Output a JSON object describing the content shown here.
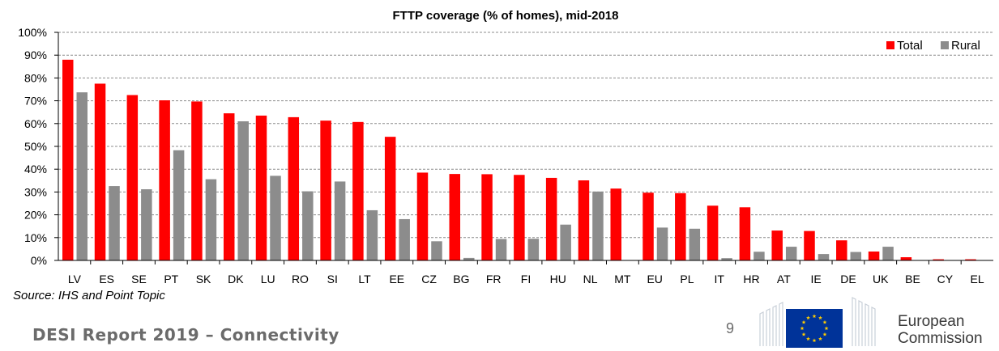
{
  "chart_data": {
    "type": "bar",
    "title": "FTTP coverage (% of homes), mid-2018",
    "xlabel": "",
    "ylabel": "",
    "ylim": [
      0,
      100
    ],
    "yticks": [
      "0%",
      "10%",
      "20%",
      "30%",
      "40%",
      "50%",
      "60%",
      "70%",
      "80%",
      "90%",
      "100%"
    ],
    "grid": true,
    "legend_position": "top-right",
    "categories": [
      "LV",
      "ES",
      "SE",
      "PT",
      "SK",
      "DK",
      "LU",
      "RO",
      "SI",
      "LT",
      "EE",
      "CZ",
      "BG",
      "FR",
      "FI",
      "HU",
      "NL",
      "MT",
      "EU",
      "PL",
      "IT",
      "HR",
      "AT",
      "IE",
      "DE",
      "UK",
      "BE",
      "CY",
      "EL"
    ],
    "series": [
      {
        "name": "Total",
        "color": "#ff0000",
        "values": [
          88,
          77.5,
          72.5,
          70.2,
          69.7,
          64.5,
          63.5,
          62.8,
          61.3,
          60.7,
          54.2,
          38.5,
          37.9,
          37.8,
          37.5,
          36.2,
          35.1,
          31.5,
          29.7,
          29.5,
          24,
          23.3,
          13.1,
          12.9,
          8.8,
          3.9,
          1.4,
          0.5,
          0.5
        ]
      },
      {
        "name": "Rural",
        "color": "#8c8c8c",
        "values": [
          73.7,
          32.6,
          31.2,
          48.3,
          35.6,
          61,
          37.1,
          30.3,
          34.6,
          22,
          18.1,
          8.4,
          1.1,
          9.4,
          9.5,
          15.7,
          30.2,
          0,
          14.4,
          13.9,
          1,
          3.8,
          6,
          2.8,
          3.7,
          6,
          0,
          0,
          0
        ]
      }
    ]
  },
  "footer": {
    "source": "Source: IHS and Point Topic",
    "report_title": "DESI Report 2019 – Connectivity",
    "page_number": "9",
    "org_line1": "European",
    "org_line2": "Commission",
    "logo_icon": "eu-flag-icon"
  }
}
